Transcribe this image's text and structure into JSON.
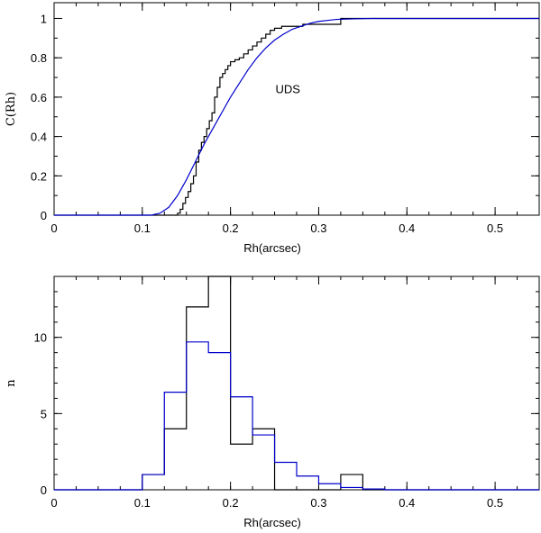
{
  "chart_data": [
    {
      "type": "line",
      "panel": "top",
      "xlabel": "Rh(arcsec)",
      "ylabel": "C(Rh)",
      "xlim": [
        0,
        0.55
      ],
      "ylim": [
        0,
        1.08
      ],
      "xticks": [
        0,
        0.1,
        0.2,
        0.3,
        0.4,
        0.5
      ],
      "xtick_labels": [
        "0",
        "0.1",
        "0.2",
        "0.3",
        "0.4",
        "0.5"
      ],
      "yticks": [
        0,
        0.2,
        0.4,
        0.6,
        0.8,
        1
      ],
      "ytick_labels": [
        "0",
        "0.2",
        "0.4",
        "0.6",
        "0.8",
        "1"
      ],
      "annotation": {
        "text": "UDS",
        "x": 0.265,
        "y": 0.62
      },
      "grid": false,
      "series": [
        {
          "color": "#000000",
          "step": true,
          "x": [
            0,
            0.14,
            0.143,
            0.146,
            0.149,
            0.152,
            0.155,
            0.158,
            0.161,
            0.164,
            0.167,
            0.17,
            0.173,
            0.176,
            0.179,
            0.182,
            0.185,
            0.188,
            0.191,
            0.194,
            0.197,
            0.2,
            0.205,
            0.21,
            0.215,
            0.22,
            0.225,
            0.23,
            0.235,
            0.24,
            0.245,
            0.25,
            0.258,
            0.266,
            0.274,
            0.282,
            0.29,
            0.3,
            0.31,
            0.32,
            0.325,
            0.55
          ],
          "y": [
            0,
            0.01,
            0.03,
            0.06,
            0.09,
            0.12,
            0.16,
            0.2,
            0.27,
            0.33,
            0.37,
            0.4,
            0.44,
            0.48,
            0.52,
            0.6,
            0.65,
            0.7,
            0.72,
            0.74,
            0.76,
            0.78,
            0.79,
            0.8,
            0.82,
            0.84,
            0.86,
            0.88,
            0.9,
            0.92,
            0.94,
            0.95,
            0.96,
            0.96,
            0.96,
            0.97,
            0.97,
            0.97,
            0.97,
            0.97,
            1.0,
            1.0
          ]
        },
        {
          "color": "#0000cc",
          "step": false,
          "x": [
            0,
            0.11,
            0.12,
            0.13,
            0.14,
            0.15,
            0.16,
            0.17,
            0.18,
            0.19,
            0.2,
            0.21,
            0.22,
            0.23,
            0.24,
            0.25,
            0.26,
            0.27,
            0.28,
            0.29,
            0.3,
            0.31,
            0.32,
            0.34,
            0.36,
            0.55
          ],
          "y": [
            0,
            0.0,
            0.01,
            0.04,
            0.1,
            0.18,
            0.27,
            0.36,
            0.44,
            0.52,
            0.6,
            0.67,
            0.74,
            0.8,
            0.85,
            0.89,
            0.92,
            0.945,
            0.96,
            0.975,
            0.985,
            0.99,
            0.995,
            0.998,
            1.0,
            1.0
          ]
        }
      ]
    },
    {
      "type": "line",
      "panel": "bottom",
      "xlabel": "Rh(arcsec)",
      "ylabel": "n",
      "xlim": [
        0,
        0.55
      ],
      "ylim": [
        0,
        14
      ],
      "xticks": [
        0,
        0.1,
        0.2,
        0.3,
        0.4,
        0.5
      ],
      "xtick_labels": [
        "0",
        "0.1",
        "0.2",
        "0.3",
        "0.4",
        "0.5"
      ],
      "yticks": [
        0,
        5,
        10
      ],
      "ytick_labels": [
        "0",
        "5",
        "10"
      ],
      "grid": false,
      "series": [
        {
          "color": "#000000",
          "step": true,
          "bin_edges": [
            0,
            0.1,
            0.125,
            0.15,
            0.175,
            0.2,
            0.225,
            0.25,
            0.275,
            0.3,
            0.325,
            0.35,
            0.375,
            0.55
          ],
          "counts": [
            0,
            1,
            4,
            12,
            14,
            3,
            4,
            0,
            0,
            0,
            1,
            0,
            0
          ]
        },
        {
          "color": "#0000cc",
          "step": true,
          "bin_edges": [
            0,
            0.1,
            0.125,
            0.15,
            0.175,
            0.2,
            0.225,
            0.25,
            0.275,
            0.3,
            0.325,
            0.35,
            0.375,
            0.55
          ],
          "counts": [
            0,
            1.0,
            6.4,
            9.7,
            9.0,
            6.1,
            3.6,
            1.8,
            0.9,
            0.4,
            0.15,
            0.05,
            0
          ]
        }
      ]
    }
  ]
}
